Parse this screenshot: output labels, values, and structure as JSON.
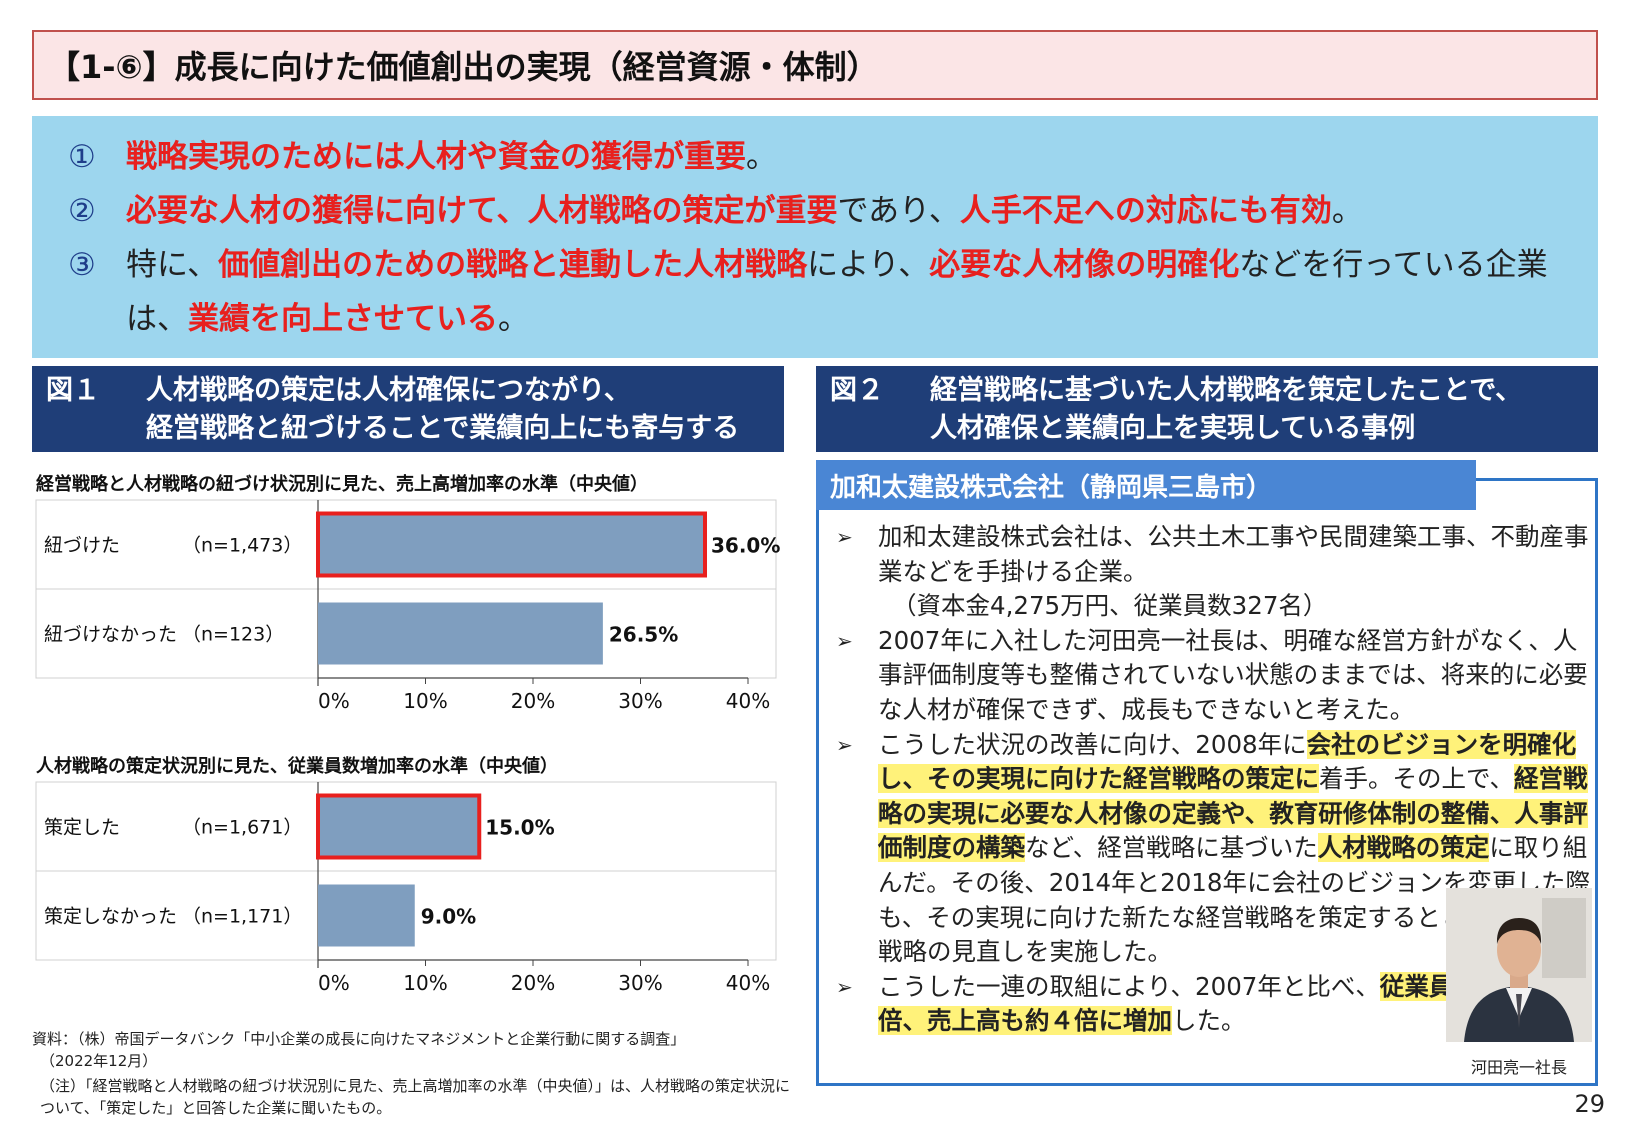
{
  "title": "【1-⑥】成長に向けた価値創出の実現（経営資源・体制）",
  "summary": {
    "items": [
      {
        "num": "①",
        "parts": [
          {
            "t": "戦略実現のためには人材や資金の獲得が重要",
            "red": true
          },
          {
            "t": "。",
            "red": false
          }
        ]
      },
      {
        "num": "②",
        "parts": [
          {
            "t": "必要な人材の獲得に向けて、人材戦略の策定が重要",
            "red": true
          },
          {
            "t": "であり、",
            "red": false
          },
          {
            "t": "人手不足への対応にも有効",
            "red": true
          },
          {
            "t": "。",
            "red": false
          }
        ]
      },
      {
        "num": "③",
        "parts": [
          {
            "t": "特に、",
            "red": false
          },
          {
            "t": "価値創出のための戦略と連動した人材戦略",
            "red": true
          },
          {
            "t": "により、",
            "red": false
          },
          {
            "t": "必要な人材像の明確化",
            "red": true
          },
          {
            "t": "などを行っている企業は、",
            "red": false
          },
          {
            "t": "業績を向上させている",
            "red": true
          },
          {
            "t": "。",
            "red": false
          }
        ]
      }
    ]
  },
  "fig1": {
    "label": "図１",
    "line1": "人材戦略の策定は人材確保につながり、",
    "line2": "経営戦略と紐づけることで業績向上にも寄与する"
  },
  "fig2": {
    "label": "図２",
    "line1": "経営戦略に基づいた人材戦略を策定したことで、",
    "line2": "人材確保と業績向上を実現している事例"
  },
  "chart_data": [
    {
      "type": "bar",
      "orientation": "horizontal",
      "title": "経営戦略と人材戦略の紐づけ状況別に見た、売上高増加率の水準（中央値）",
      "categories": [
        "紐づけた",
        "紐づけなかった"
      ],
      "n_labels": [
        "（n=1,473）",
        "（n=123）"
      ],
      "values": [
        36.0,
        26.5
      ],
      "value_labels": [
        "36.0%",
        "26.5%"
      ],
      "highlighted": [
        true,
        false
      ],
      "xlim": [
        0,
        40
      ],
      "ticks": [
        "0%",
        "10%",
        "20%",
        "30%",
        "40%"
      ],
      "bar_color": "#7f9ebf",
      "highlight_color": "#e8201e"
    },
    {
      "type": "bar",
      "orientation": "horizontal",
      "title": "人材戦略の策定状況別に見た、従業員数増加率の水準（中央値）",
      "categories": [
        "策定した",
        "策定しなかった"
      ],
      "n_labels": [
        "（n=1,671）",
        "（n=1,171）"
      ],
      "values": [
        15.0,
        9.0
      ],
      "value_labels": [
        "15.0%",
        "9.0%"
      ],
      "highlighted": [
        true,
        false
      ],
      "xlim": [
        0,
        40
      ],
      "ticks": [
        "0%",
        "10%",
        "20%",
        "30%",
        "40%"
      ],
      "bar_color": "#7f9ebf",
      "highlight_color": "#e8201e"
    }
  ],
  "source": {
    "line1": "資料：（株）帝国データバンク「中小企業の成長に向けたマネジメントと企業行動に関する調査」",
    "line2": "（2022年12月）",
    "line3": "（注）「経営戦略と人材戦略の紐づけ状況別に見た、売上高増加率の水準（中央値）」は、人材戦略の策定状況について、「策定した」と回答した企業に聞いたもの。"
  },
  "company": {
    "name": "加和太建設株式会社（静岡県三島市）",
    "bullet_mark": "➢",
    "bullets": [
      [
        {
          "t": "加和太建設株式会社は、公共土木工事や民間建築工事、不動産事業などを手掛ける企業。",
          "hl": false
        },
        {
          "t": "（資本金4,275万円、従業員数327名）",
          "hl": false,
          "block": true
        }
      ],
      [
        {
          "t": "2007年に入社した河田亮一社長は、明確な経営方針がなく、人事評価制度等も整備されていない状態のままでは、将来的に必要な人材が確保できず、成長もできないと考えた。",
          "hl": false
        }
      ],
      [
        {
          "t": "こうした状況の改善に向け、2008年に",
          "hl": false
        },
        {
          "t": "会社のビジョンを明確化し、その実現に向けた経営戦略の策定に",
          "hl": true
        },
        {
          "t": "着手。その上で、",
          "hl": false
        },
        {
          "t": "経営戦略の実現に必要な人材像の定義や、教育研修体制の整備、人事評価制度の構築",
          "hl": true
        },
        {
          "t": "など、経営戦略に基づいた",
          "hl": false
        },
        {
          "t": "人材戦略の策定",
          "hl": true
        },
        {
          "t": "に取り組んだ。その後、2014年と2018年に会社のビジョンを変更した際も、その実現に向けた新たな経営戦略を策定するとともに、人材戦略の見直しを実施した。",
          "hl": false
        }
      ],
      [
        {
          "t": "こうした一連の取組により、2007年と比べ、",
          "hl": false
        },
        {
          "t": "従業員数は約５倍、売上高も約４倍に増加",
          "hl": true
        },
        {
          "t": "した。",
          "hl": false
        }
      ]
    ],
    "photo_caption": "河田亮一社長"
  },
  "page_number": "29"
}
